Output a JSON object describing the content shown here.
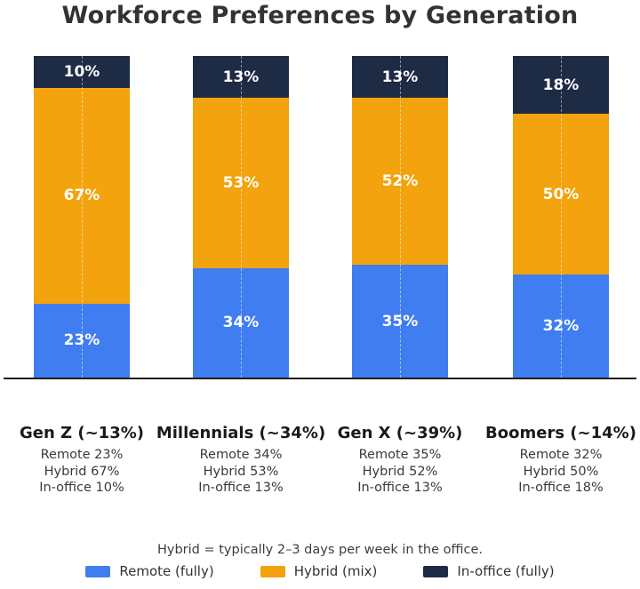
{
  "title": "Workforce Preferences by Generation",
  "chart_data": {
    "type": "bar",
    "stacked": true,
    "orientation": "vertical",
    "title": "Workforce Preferences by Generation",
    "categories": [
      "Gen Z (~13%)",
      "Millennials (~34%)",
      "Gen X (~39%)",
      "Boomers (~14%)"
    ],
    "series": [
      {
        "key": "remote",
        "name": "Remote (fully)",
        "color": "#3F7DF0",
        "values": [
          23,
          34,
          35,
          32
        ]
      },
      {
        "key": "hybrid",
        "name": "Hybrid (mix)",
        "color": "#F2A30D",
        "values": [
          67,
          53,
          52,
          50
        ]
      },
      {
        "key": "inoffice",
        "name": "In-office (fully)",
        "color": "#1E2B45",
        "values": [
          10,
          13,
          13,
          18
        ]
      }
    ],
    "value_format": "percent",
    "ylim": [
      0,
      100
    ],
    "grid": false,
    "legend_position": "bottom",
    "axis_color": "#1c1c1c"
  },
  "bars": [
    {
      "header": "Gen Z (~13%)",
      "remote_label": "23%",
      "hybrid_label": "67%",
      "inoffice_label": "10%",
      "caption_remote": "Remote 23%",
      "caption_hybrid": "Hybrid 67%",
      "caption_inoffice": "In-office 10%"
    },
    {
      "header": "Millennials (~34%)",
      "remote_label": "34%",
      "hybrid_label": "53%",
      "inoffice_label": "13%",
      "caption_remote": "Remote 34%",
      "caption_hybrid": "Hybrid 53%",
      "caption_inoffice": "In-office 13%"
    },
    {
      "header": "Gen X (~39%)",
      "remote_label": "35%",
      "hybrid_label": "52%",
      "inoffice_label": "13%",
      "caption_remote": "Remote 35%",
      "caption_hybrid": "Hybrid 52%",
      "caption_inoffice": "In-office 13%"
    },
    {
      "header": "Boomers (~14%)",
      "remote_label": "32%",
      "hybrid_label": "50%",
      "inoffice_label": "18%",
      "caption_remote": "Remote 32%",
      "caption_hybrid": "Hybrid 50%",
      "caption_inoffice": "In-office 18%"
    }
  ],
  "footnote": "Hybrid = typically 2–3 days per week in the office.",
  "legend": {
    "items": [
      {
        "key": "remote",
        "label": "Remote (fully)",
        "color": "#3F7DF0"
      },
      {
        "key": "hybrid",
        "label": "Hybrid (mix)",
        "color": "#F2A30D"
      },
      {
        "key": "inoffice",
        "label": "In-office (fully)",
        "color": "#1E2B45"
      }
    ]
  }
}
